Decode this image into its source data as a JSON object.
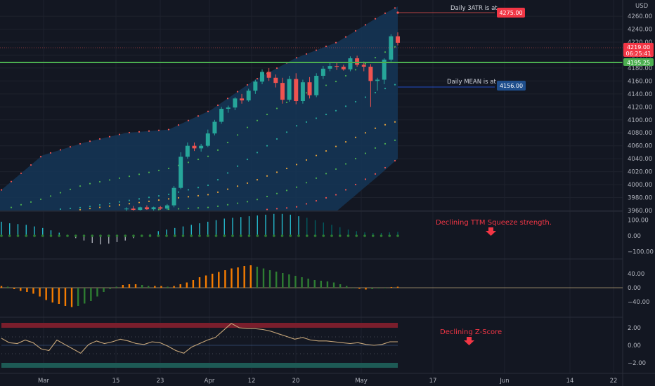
{
  "chart_data": {
    "type": "candlestick",
    "currency": "USD",
    "colors": {
      "up": "#26a69a",
      "down": "#ef5350",
      "background": "#131722",
      "grid": "#1e222d",
      "band_fill": "#153657",
      "price_label": "#f23645",
      "mean_label": "#1e4e8c",
      "green_line": "#4caf50",
      "zscore_line": "#c8a77a"
    },
    "price_axis": {
      "ticks": [
        "4260.00",
        "4240.00",
        "4220.00",
        "4200.00",
        "4180.00",
        "4160.00",
        "4140.00",
        "4120.00",
        "4100.00",
        "4080.00",
        "4060.00",
        "4040.00",
        "4020.00",
        "4000.00",
        "3980.00",
        "3960.00"
      ],
      "range": [
        3960,
        4285
      ]
    },
    "x_axis": {
      "ticks": [
        "Mar",
        "15",
        "23",
        "Apr",
        "12",
        "20",
        "May",
        "17",
        "Jun",
        "14",
        "22"
      ]
    },
    "candles": [
      {
        "o": 3962,
        "h": 3965,
        "l": 3959,
        "c": 3963
      },
      {
        "o": 3963,
        "h": 3967,
        "l": 3960,
        "c": 3961
      },
      {
        "o": 3961,
        "h": 3966,
        "l": 3960,
        "c": 3965
      },
      {
        "o": 3965,
        "h": 3968,
        "l": 3961,
        "c": 3962
      },
      {
        "o": 3962,
        "h": 3966,
        "l": 3960,
        "c": 3965
      },
      {
        "o": 3965,
        "h": 3967,
        "l": 3961,
        "c": 3963
      },
      {
        "o": 3963,
        "h": 3970,
        "l": 3961,
        "c": 3968
      },
      {
        "o": 3968,
        "h": 3998,
        "l": 3965,
        "c": 3995
      },
      {
        "o": 3995,
        "h": 4050,
        "l": 3993,
        "c": 4043
      },
      {
        "o": 4043,
        "h": 4065,
        "l": 4040,
        "c": 4060
      },
      {
        "o": 4060,
        "h": 4065,
        "l": 4052,
        "c": 4056
      },
      {
        "o": 4056,
        "h": 4063,
        "l": 4051,
        "c": 4060
      },
      {
        "o": 4060,
        "h": 4085,
        "l": 4058,
        "c": 4079
      },
      {
        "o": 4079,
        "h": 4100,
        "l": 4076,
        "c": 4097
      },
      {
        "o": 4097,
        "h": 4120,
        "l": 4094,
        "c": 4117
      },
      {
        "o": 4117,
        "h": 4122,
        "l": 4111,
        "c": 4119
      },
      {
        "o": 4119,
        "h": 4135,
        "l": 4115,
        "c": 4133
      },
      {
        "o": 4133,
        "h": 4140,
        "l": 4125,
        "c": 4130
      },
      {
        "o": 4130,
        "h": 4148,
        "l": 4128,
        "c": 4145
      },
      {
        "o": 4145,
        "h": 4162,
        "l": 4140,
        "c": 4159
      },
      {
        "o": 4159,
        "h": 4178,
        "l": 4155,
        "c": 4174
      },
      {
        "o": 4174,
        "h": 4180,
        "l": 4160,
        "c": 4165
      },
      {
        "o": 4165,
        "h": 4170,
        "l": 4150,
        "c": 4157
      },
      {
        "o": 4157,
        "h": 4165,
        "l": 4125,
        "c": 4131
      },
      {
        "o": 4131,
        "h": 4168,
        "l": 4128,
        "c": 4163
      },
      {
        "o": 4163,
        "h": 4172,
        "l": 4124,
        "c": 4129
      },
      {
        "o": 4129,
        "h": 4162,
        "l": 4125,
        "c": 4158
      },
      {
        "o": 4158,
        "h": 4166,
        "l": 4133,
        "c": 4138
      },
      {
        "o": 4138,
        "h": 4172,
        "l": 4135,
        "c": 4168
      },
      {
        "o": 4168,
        "h": 4183,
        "l": 4163,
        "c": 4179
      },
      {
        "o": 4179,
        "h": 4189,
        "l": 4175,
        "c": 4183
      },
      {
        "o": 4183,
        "h": 4188,
        "l": 4177,
        "c": 4182
      },
      {
        "o": 4182,
        "h": 4185,
        "l": 4176,
        "c": 4178
      },
      {
        "o": 4178,
        "h": 4198,
        "l": 4175,
        "c": 4195
      },
      {
        "o": 4195,
        "h": 4199,
        "l": 4182,
        "c": 4185
      },
      {
        "o": 4185,
        "h": 4190,
        "l": 4175,
        "c": 4182
      },
      {
        "o": 4182,
        "h": 4186,
        "l": 4120,
        "c": 4160
      },
      {
        "o": 4160,
        "h": 4165,
        "l": 4145,
        "c": 4162
      },
      {
        "o": 4162,
        "h": 4195,
        "l": 4155,
        "c": 4193
      },
      {
        "o": 4193,
        "h": 4232,
        "l": 4190,
        "c": 4229
      },
      {
        "o": 4229,
        "h": 4235,
        "l": 4215,
        "c": 4219
      }
    ],
    "annotations": {
      "atr_text": "Daily 3ATR is at",
      "atr_value": "4275.00",
      "mean_text": "Daily MEAN is at",
      "mean_value": "4156.00",
      "price_value": "4219.00",
      "countdown": "06:25:41",
      "green_value": "4195.25",
      "squeeze_note": "Declining TTM Squeeze strength.",
      "zscore_note": "Declining Z-Score"
    },
    "squeeze_panel": {
      "ticks": [
        "100.00",
        "0.00",
        "−100.00"
      ],
      "range": [
        -130,
        130
      ],
      "values": [
        90,
        80,
        75,
        70,
        60,
        50,
        35,
        20,
        0,
        -15,
        -30,
        -45,
        -55,
        -50,
        -40,
        -30,
        -15,
        0,
        10,
        30,
        40,
        50,
        60,
        70,
        80,
        90,
        100,
        110,
        115,
        120,
        125,
        130,
        135,
        140,
        140,
        135,
        125,
        115,
        100,
        85,
        70,
        55,
        40,
        30,
        22,
        18,
        18,
        22,
        25
      ]
    },
    "momentum_panel": {
      "ticks": [
        "40.00",
        "0.00",
        "−40.00"
      ],
      "range": [
        -65,
        70
      ],
      "values": [
        5,
        3,
        -4,
        -9,
        -12,
        -17,
        -25,
        -35,
        -42,
        -46,
        -52,
        -55,
        -52,
        -45,
        -38,
        -25,
        -12,
        -4,
        3,
        8,
        10,
        10,
        8,
        5,
        5,
        5,
        3,
        5,
        10,
        15,
        22,
        30,
        35,
        40,
        45,
        50,
        55,
        58,
        62,
        64,
        60,
        55,
        50,
        46,
        42,
        38,
        34,
        30,
        26,
        22,
        20,
        18,
        15,
        10,
        5,
        0,
        -3,
        -5,
        -4,
        -2,
        0,
        2,
        3
      ]
    },
    "zscore_panel": {
      "ticks": [
        "2.00",
        "0.00",
        "−2.00"
      ],
      "range": [
        -2.7,
        3.3
      ],
      "values": [
        0.8,
        0.3,
        0.2,
        0.6,
        0.3,
        -0.4,
        -0.6,
        0.6,
        0.1,
        -0.4,
        -0.9,
        0.1,
        0.5,
        0.2,
        0.4,
        0.7,
        0.5,
        0.2,
        0.1,
        0.4,
        0.3,
        -0.1,
        -0.6,
        -0.9,
        -0.2,
        0.2,
        0.6,
        0.9,
        1.7,
        2.5,
        2.0,
        1.9,
        1.9,
        1.8,
        1.6,
        1.3,
        1.0,
        0.7,
        0.9,
        0.6,
        0.5,
        0.5,
        0.4,
        0.3,
        0.2,
        0.3,
        0.1,
        0.0,
        0.1,
        0.4,
        0.4
      ]
    }
  }
}
